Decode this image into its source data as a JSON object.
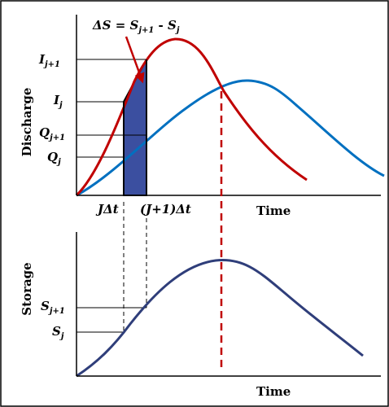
{
  "top_panel": {
    "y_axis_label": "Discharge",
    "x_axis_label": "Time",
    "equation": {
      "lhs": "ΔS",
      "eq": " = ",
      "t1": "S",
      "t1_sub": "j+1",
      "minus": " - ",
      "t2": "S",
      "t2_sub": "j"
    },
    "ticks": {
      "I_j1": {
        "main": "I",
        "sub": "j+1"
      },
      "I_j": {
        "main": "I",
        "sub": "j"
      },
      "Q_j1": {
        "main": "Q",
        "sub": "j+1"
      },
      "Q_j": {
        "main": "Q",
        "sub": "j"
      }
    },
    "time_marks": {
      "t_j": "JΔt",
      "t_j1": "(J+1)Δt"
    }
  },
  "bottom_panel": {
    "y_axis_label": "Storage",
    "x_axis_label": "Time",
    "ticks": {
      "S_j1": {
        "main": "S",
        "sub": "j+1"
      },
      "S_j": {
        "main": "S",
        "sub": "j"
      }
    }
  },
  "colors": {
    "inflow": "#c00000",
    "outflow": "#0070c0",
    "storage": "#2f3e7a",
    "shaded_area": "#3b4fa0",
    "peak_marker": "#c00000",
    "axes": "#000000"
  }
}
